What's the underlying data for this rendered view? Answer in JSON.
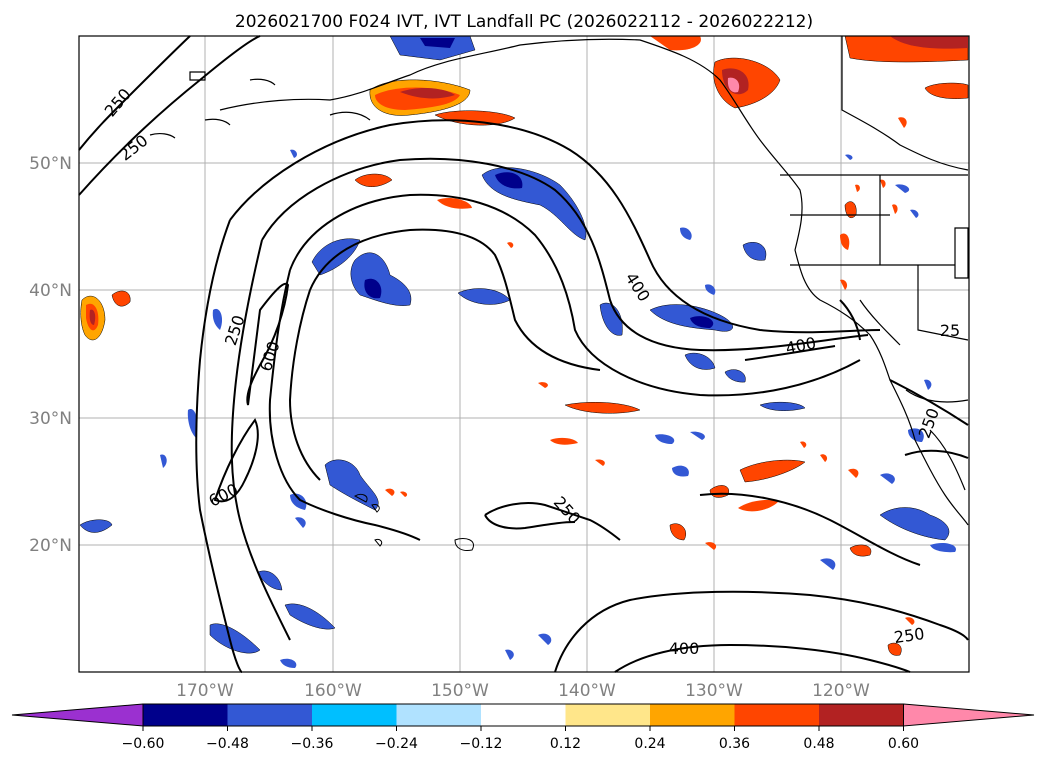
{
  "title": "2026021700 F024 IVT, IVT Landfall PC (2026022112 - 2026022212)",
  "lat_labels": [
    "50°N",
    "40°N",
    "30°N",
    "20°N"
  ],
  "lon_labels": [
    "170°W",
    "160°W",
    "150°W",
    "140°W",
    "130°W",
    "120°W"
  ],
  "contour_labels": [
    "250",
    "250",
    "250",
    "600",
    "600",
    "400",
    "400",
    "250",
    "400",
    "250",
    "250",
    "25"
  ],
  "colorbar": {
    "ticks": [
      "−0.60",
      "−0.48",
      "−0.36",
      "−0.24",
      "−0.12",
      "0.12",
      "0.24",
      "0.36",
      "0.48",
      "0.60"
    ],
    "colors": [
      "#9b30d0",
      "#00008b",
      "#3358d4",
      "#00bfff",
      "#b0e2ff",
      "#ffffff",
      "#ffe68a",
      "#ffa500",
      "#ff4500",
      "#b22222",
      "#ff88aa"
    ]
  },
  "legend_colors": {
    "neg_dark": "#00008b",
    "neg_mid": "#3358d4",
    "neg_light": "#00bfff",
    "neg_pale": "#b0e2ff",
    "pos_pale": "#ffe68a",
    "pos_light": "#ffa500",
    "pos_mid": "#ff4500",
    "pos_dark": "#b22222",
    "pos_max": "#ff88aa"
  }
}
